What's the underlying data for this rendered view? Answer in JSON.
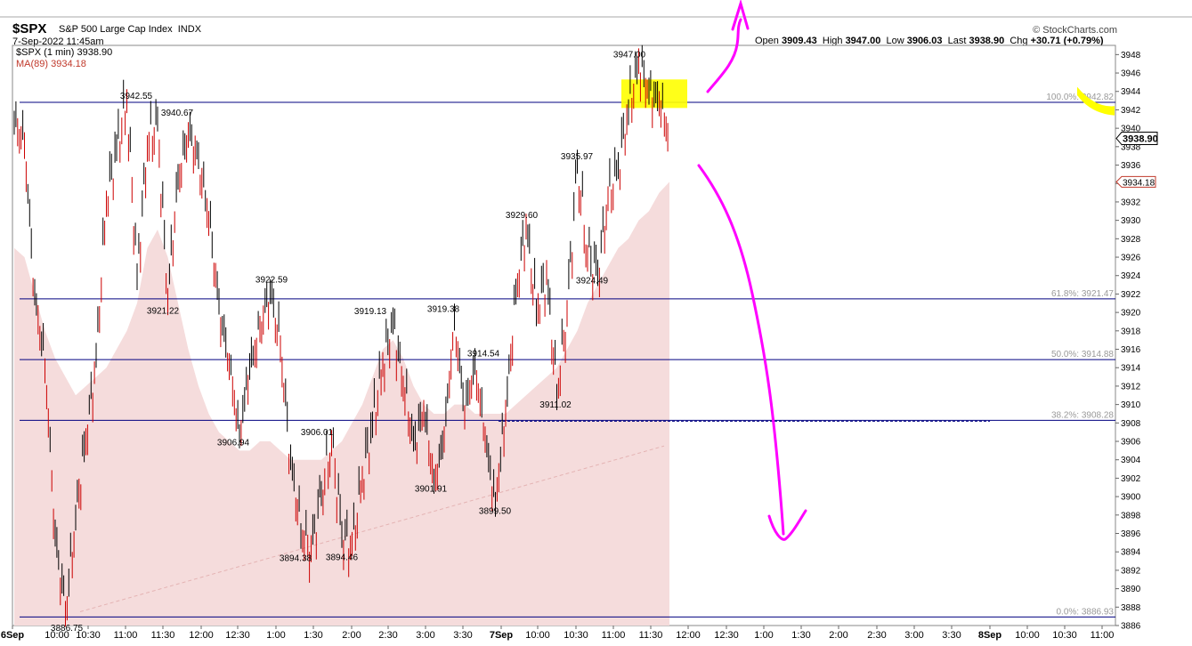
{
  "header": {
    "symbol": "$SPX",
    "name": "S&P 500 Large Cap Index",
    "exchange": "INDX",
    "datetime": "7-Sep-2022 11:45am",
    "brand": "© StockCharts.com",
    "ohlc": {
      "open_label": "Open",
      "open": "3909.43",
      "high_label": "High",
      "high": "3947.00",
      "low_label": "Low",
      "low": "3906.03",
      "last_label": "Last",
      "last": "3938.90",
      "chg_label": "Chg",
      "chg": "+30.71 (+0.79%)"
    }
  },
  "legend": {
    "price": "$SPX (1 min) 3938.90",
    "ma": "MA(89) 3934.18"
  },
  "colors": {
    "price_up": "#000000",
    "price_down": "#cc0000",
    "ma_fill": "#f5dcdc",
    "fib_line": "#000080",
    "highlight": "#ffff00",
    "annotation": "#ff00ff"
  },
  "chart_data": {
    "type": "line",
    "title": "",
    "xlabel": "",
    "ylabel": "",
    "ylim": [
      3886,
      3949
    ],
    "y_ticks": [
      3886,
      3888,
      3890,
      3892,
      3894,
      3896,
      3898,
      3900,
      3902,
      3904,
      3906,
      3908,
      3910,
      3912,
      3914,
      3916,
      3918,
      3920,
      3922,
      3924,
      3926,
      3928,
      3930,
      3932,
      3934,
      3936,
      3938,
      3940,
      3942,
      3944,
      3946,
      3948
    ],
    "x_ticks": [
      "6Sep",
      "10:00",
      "10:30",
      "11:00",
      "11:30",
      "12:00",
      "12:30",
      "1:00",
      "1:30",
      "2:00",
      "2:30",
      "3:00",
      "3:30",
      "7Sep",
      "10:00",
      "10:30",
      "11:00",
      "11:30",
      "12:00",
      "12:30",
      "1:00",
      "1:30",
      "2:00",
      "2:30",
      "3:00",
      "3:30",
      "8Sep",
      "10:00",
      "10:30",
      "11:00"
    ],
    "series": [
      {
        "points": [
          [
            0,
            3941
          ],
          [
            1,
            3938
          ],
          [
            2,
            3922
          ],
          [
            3,
            3914
          ],
          [
            4,
            3896
          ],
          [
            5,
            3887
          ],
          [
            6,
            3898
          ],
          [
            7,
            3906
          ],
          [
            8,
            3915
          ],
          [
            9,
            3932
          ],
          [
            10,
            3938
          ],
          [
            11,
            3942.55
          ],
          [
            12,
            3924
          ],
          [
            13,
            3938
          ],
          [
            14,
            3940.67
          ],
          [
            15,
            3921.22
          ],
          [
            16,
            3935
          ],
          [
            17,
            3939
          ],
          [
            18,
            3937
          ],
          [
            19,
            3930
          ],
          [
            20,
            3921
          ],
          [
            21,
            3914
          ],
          [
            22,
            3906.94
          ],
          [
            23,
            3914
          ],
          [
            24,
            3918
          ],
          [
            25,
            3922.59
          ],
          [
            26,
            3916
          ],
          [
            27,
            3904
          ],
          [
            28,
            3896
          ],
          [
            29,
            3894.38
          ],
          [
            30,
            3900
          ],
          [
            31,
            3906.01
          ],
          [
            32,
            3896
          ],
          [
            33,
            3894.46
          ],
          [
            34,
            3902
          ],
          [
            35,
            3908
          ],
          [
            36,
            3914
          ],
          [
            37,
            3919.13
          ],
          [
            38,
            3912
          ],
          [
            39,
            3906
          ],
          [
            40,
            3909
          ],
          [
            41,
            3902
          ],
          [
            42,
            3906
          ],
          [
            43,
            3919.38
          ],
          [
            44,
            3909
          ],
          [
            45,
            3914.54
          ],
          [
            46,
            3906
          ],
          [
            47,
            3899.5
          ],
          [
            48,
            3909
          ],
          [
            49,
            3922
          ],
          [
            50,
            3929.6
          ],
          [
            51,
            3920
          ],
          [
            52,
            3924
          ],
          [
            53,
            3911.02
          ],
          [
            54,
            3920
          ],
          [
            55,
            3935.97
          ],
          [
            56,
            3926
          ],
          [
            57,
            3924.49
          ],
          [
            58,
            3932
          ],
          [
            59,
            3936
          ],
          [
            60,
            3942
          ],
          [
            61,
            3947
          ],
          [
            62,
            3944
          ],
          [
            63,
            3943
          ],
          [
            64,
            3938.9
          ]
        ],
        "x_range": [
          0,
          64
        ]
      },
      {
        "name": "MA(89)",
        "points": [
          [
            0,
            3927
          ],
          [
            1,
            3926
          ],
          [
            2,
            3922
          ],
          [
            3,
            3918
          ],
          [
            4,
            3915
          ],
          [
            5,
            3913
          ],
          [
            6,
            3911
          ],
          [
            7,
            3912
          ],
          [
            8,
            3913
          ],
          [
            9,
            3914
          ],
          [
            10,
            3916
          ],
          [
            11,
            3918
          ],
          [
            12,
            3921
          ],
          [
            13,
            3927
          ],
          [
            14,
            3929
          ],
          [
            15,
            3926
          ],
          [
            16,
            3921
          ],
          [
            17,
            3916
          ],
          [
            18,
            3912
          ],
          [
            19,
            3909
          ],
          [
            20,
            3907
          ],
          [
            21,
            3906
          ],
          [
            22,
            3905
          ],
          [
            23,
            3905
          ],
          [
            24,
            3906
          ],
          [
            25,
            3906
          ],
          [
            26,
            3905
          ],
          [
            27,
            3904
          ],
          [
            28,
            3904
          ],
          [
            29,
            3904
          ],
          [
            30,
            3904
          ],
          [
            31,
            3905
          ],
          [
            32,
            3906
          ],
          [
            33,
            3908
          ],
          [
            34,
            3910
          ],
          [
            35,
            3913
          ],
          [
            36,
            3916
          ],
          [
            37,
            3917
          ],
          [
            38,
            3915
          ],
          [
            39,
            3912
          ],
          [
            40,
            3910
          ],
          [
            41,
            3909
          ],
          [
            42,
            3909
          ],
          [
            43,
            3910
          ],
          [
            44,
            3910
          ],
          [
            45,
            3909
          ],
          [
            46,
            3909
          ],
          [
            47,
            3909
          ],
          [
            48,
            3909
          ],
          [
            49,
            3910
          ],
          [
            50,
            3911
          ],
          [
            51,
            3912
          ],
          [
            52,
            3913
          ],
          [
            53,
            3914
          ],
          [
            54,
            3916
          ],
          [
            55,
            3918
          ],
          [
            56,
            3921
          ],
          [
            57,
            3923
          ],
          [
            58,
            3925
          ],
          [
            59,
            3927
          ],
          [
            60,
            3928
          ],
          [
            61,
            3930
          ],
          [
            62,
            3931
          ],
          [
            63,
            3933
          ],
          [
            64,
            3934.18
          ]
        ],
        "x_range": [
          0,
          64
        ]
      }
    ],
    "peak_labels": [
      "3942.55",
      "3940.67",
      "3921.22",
      "3922.59",
      "3906.94",
      "3906.01",
      "3894.38",
      "3894.46",
      "3919.13",
      "3919.38",
      "3914.54",
      "3901.91",
      "3899.50",
      "3929.60",
      "3935.97",
      "3924.49",
      "3911.02",
      "3947.00",
      "3886.75"
    ],
    "fib_levels": [
      {
        "label": "100.0%: 3942.82",
        "value": 3942.82
      },
      {
        "label": "61.8%: 3921.47",
        "value": 3921.47
      },
      {
        "label": "50.0%: 3914.88",
        "value": 3914.88
      },
      {
        "label": "38.2%: 3908.28",
        "value": 3908.28
      },
      {
        "label": "0.0%: 3886.93",
        "value": 3886.93
      }
    ],
    "last_price_tag": "3938.90",
    "ma_tag": "3934.18"
  }
}
